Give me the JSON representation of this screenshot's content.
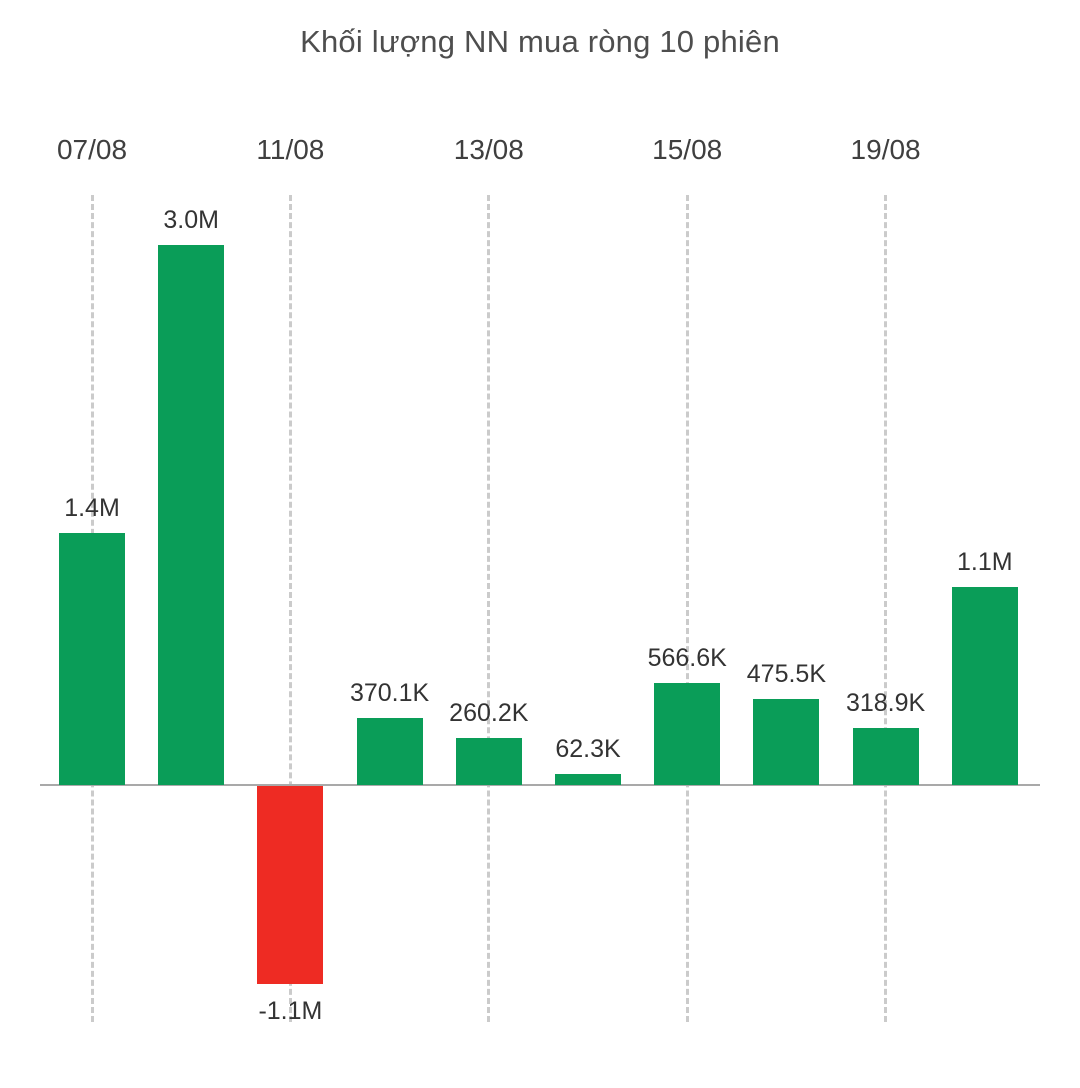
{
  "title": "Khối lượng NN mua ròng 10 phiên",
  "colors": {
    "positive_bar": "#0a9d58",
    "negative_bar": "#ee2b23",
    "gridline": "#cbcbcb",
    "baseline": "#a9a9a9",
    "text": "#3f3f3f"
  },
  "chart_data": {
    "type": "bar",
    "title": "Khối lượng NN mua ròng 10 phiên",
    "x_tick_labels": [
      "07/08",
      "11/08",
      "13/08",
      "15/08",
      "19/08"
    ],
    "x_tick_positions": [
      0,
      2,
      4,
      6,
      8
    ],
    "values": [
      1400000,
      3000000,
      -1100000,
      370100,
      260200,
      62300,
      566600,
      475500,
      318900,
      1100000
    ],
    "value_labels": [
      "1.4M",
      "3.0M",
      "-1.1M",
      "370.1K",
      "260.2K",
      "62.3K",
      "566.6K",
      "475.5K",
      "318.9K",
      "1.1M"
    ],
    "bar_count": 10,
    "ylim": [
      -1300000,
      3100000
    ],
    "grid": "vertical-dashed",
    "legend": "none",
    "positive_color": "#0a9d58",
    "negative_color": "#ee2b23"
  }
}
